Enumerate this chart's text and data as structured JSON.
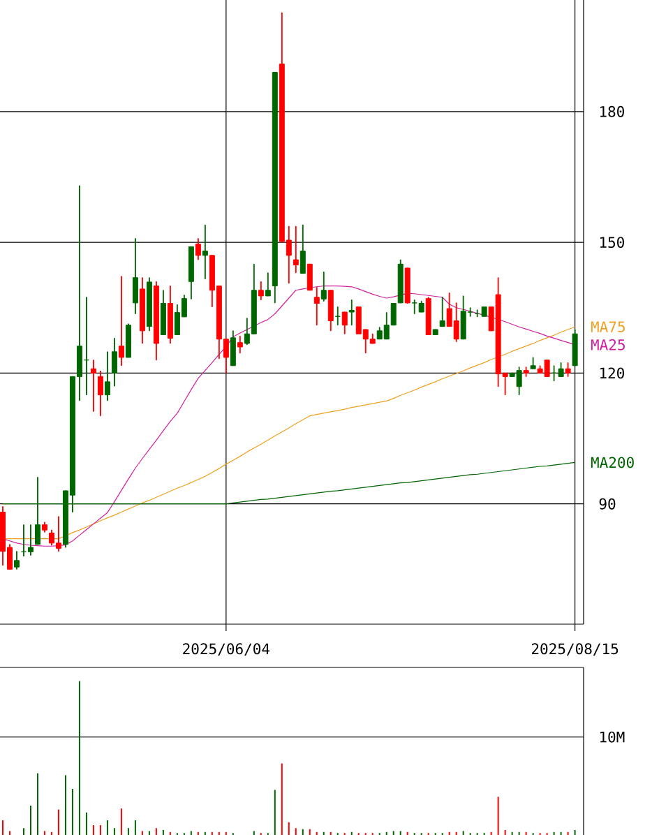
{
  "chart_data": [
    {
      "type": "candlestick",
      "categories": [
        null,
        null,
        null,
        null,
        null,
        null,
        null,
        null,
        null,
        null,
        null,
        null,
        null,
        null,
        null,
        null,
        null,
        null,
        null,
        null,
        null,
        null,
        null,
        null,
        null,
        null,
        null,
        null,
        null,
        null,
        null,
        null,
        "2025/06/04",
        null,
        null,
        null,
        null,
        null,
        null,
        null,
        null,
        null,
        null,
        null,
        null,
        null,
        null,
        null,
        null,
        null,
        null,
        null,
        null,
        null,
        null,
        null,
        null,
        null,
        null,
        null,
        null,
        null,
        null,
        null,
        null,
        null,
        null,
        null,
        null,
        null,
        null,
        null,
        null,
        null,
        null,
        null,
        null,
        null,
        null,
        null,
        null,
        null,
        "2025/08/15"
      ],
      "ohlc": [
        [
          88.1,
          89.4,
          75.9,
          79.1
        ],
        [
          80,
          80.7,
          75,
          75
        ],
        [
          75.5,
          79.1,
          75,
          77
        ],
        [
          79,
          85.2,
          78,
          79
        ],
        [
          79,
          85.2,
          78.2,
          80
        ],
        [
          80.7,
          96.1,
          80.7,
          85.2
        ],
        [
          85.2,
          85.8,
          83.5,
          84
        ],
        [
          83.3,
          84,
          80.5,
          81
        ],
        [
          81,
          87.1,
          79.1,
          79.8
        ],
        [
          80.7,
          93,
          80,
          93
        ],
        [
          92,
          119.2,
          88.1,
          119.2
        ],
        [
          119.2,
          163,
          113.7,
          126.2
        ],
        [
          123,
          137.4,
          115,
          123
        ],
        [
          121,
          123,
          111.2,
          120
        ],
        [
          119.2,
          120.5,
          110.2,
          115
        ],
        [
          115,
          124.9,
          113.7,
          118
        ],
        [
          120,
          128,
          117,
          124.9
        ],
        [
          126.2,
          142.2,
          121.7,
          123.6
        ],
        [
          123.6,
          131.3,
          123.6,
          131
        ],
        [
          136.1,
          150.9,
          133.6,
          141.9
        ],
        [
          139.3,
          141.9,
          126.8,
          129.7
        ],
        [
          130.7,
          141.9,
          129.7,
          140.9
        ],
        [
          140,
          141,
          123,
          126.8
        ],
        [
          128.8,
          139,
          128.8,
          136
        ],
        [
          136,
          140,
          126.8,
          128
        ],
        [
          128.8,
          135.7,
          128.8,
          133.9
        ],
        [
          132.9,
          137.9,
          132.9,
          137.1
        ],
        [
          141,
          149,
          137,
          149
        ],
        [
          149.6,
          150.9,
          146,
          147
        ],
        [
          147,
          154,
          141.6,
          148
        ],
        [
          147,
          147,
          135.2,
          139
        ],
        [
          140,
          140,
          123.3,
          127.8
        ],
        [
          127.8,
          127.8,
          120,
          123.6
        ],
        [
          121.7,
          129.7,
          121.7,
          128.1
        ],
        [
          127,
          128.5,
          124.6,
          126
        ],
        [
          126.8,
          132.6,
          126.5,
          129
        ],
        [
          129,
          145,
          129,
          139
        ],
        [
          139,
          141,
          136.8,
          137.7
        ],
        [
          137.7,
          143,
          137.7,
          139
        ],
        [
          140,
          189,
          136.1,
          189
        ],
        [
          190.9,
          202.7,
          150,
          150.2
        ],
        [
          150.5,
          153.7,
          140.6,
          147
        ],
        [
          146,
          153.7,
          143,
          144.8
        ],
        [
          142.9,
          154,
          142.9,
          148
        ],
        [
          145,
          145,
          139,
          139
        ],
        [
          137.4,
          139.7,
          131,
          136
        ],
        [
          137,
          143.2,
          136.5,
          139
        ],
        [
          139,
          139,
          129.7,
          132
        ],
        [
          133,
          135.2,
          131,
          133
        ],
        [
          134,
          134,
          129,
          131
        ],
        [
          134,
          136.8,
          131,
          134.4
        ],
        [
          135.2,
          135.2,
          129,
          129
        ],
        [
          130,
          130,
          124.6,
          127.8
        ],
        [
          127.8,
          129,
          126.8,
          126.8
        ],
        [
          127.8,
          130.5,
          127.8,
          129.7
        ],
        [
          127.8,
          133.9,
          127.8,
          131
        ],
        [
          131,
          136,
          131,
          136
        ],
        [
          136.1,
          146,
          136.1,
          145
        ],
        [
          144.1,
          144.1,
          136,
          136.1
        ],
        [
          136.1,
          136.8,
          133.6,
          136.1
        ],
        [
          134,
          136.5,
          134,
          136
        ],
        [
          137.1,
          137.4,
          128.8,
          128.8
        ],
        [
          128.8,
          130,
          128.8,
          130
        ],
        [
          130.7,
          137.4,
          130.7,
          132
        ],
        [
          134.8,
          138.4,
          130.7,
          130.7
        ],
        [
          132,
          136.1,
          127.2,
          127.8
        ],
        [
          127.8,
          137.7,
          127.8,
          134.2
        ],
        [
          134,
          135,
          133,
          134
        ],
        [
          133.6,
          134.5,
          132.9,
          133.6
        ],
        [
          133,
          135.2,
          133,
          135.2
        ],
        [
          135.2,
          135.2,
          129.7,
          129.7
        ],
        [
          138,
          141.9,
          116.9,
          119.8
        ],
        [
          120,
          120,
          115,
          119.2
        ],
        [
          119.2,
          120,
          119.2,
          120
        ],
        [
          116.9,
          121.4,
          115,
          120.6
        ],
        [
          120.6,
          121.4,
          119.2,
          120
        ],
        [
          121,
          123.6,
          121,
          121.7
        ],
        [
          121,
          121.7,
          120,
          120
        ],
        [
          123,
          123,
          119.2,
          119.2
        ],
        [
          120,
          121.7,
          118.2,
          120
        ],
        [
          119.2,
          122.4,
          119.2,
          121
        ],
        [
          121,
          122.4,
          119.2,
          120
        ],
        [
          121.7,
          130,
          121.7,
          129
        ]
      ],
      "colors": [
        "#ff0000",
        "#ff0000",
        "#006600",
        "#006600",
        "#006600",
        "#006600",
        "#ff0000",
        "#ff0000",
        "#ff0000",
        "#006600",
        "#006600",
        "#006600",
        "#006600",
        "#ff0000",
        "#ff0000",
        "#006600",
        "#006600",
        "#ff0000",
        "#006600",
        "#006600",
        "#ff0000",
        "#006600",
        "#ff0000",
        "#006600",
        "#ff0000",
        "#006600",
        "#006600",
        "#006600",
        "#ff0000",
        "#006600",
        "#ff0000",
        "#ff0000",
        "#ff0000",
        "#006600",
        "#ff0000",
        "#006600",
        "#006600",
        "#ff0000",
        "#006600",
        "#006600",
        "#ff0000",
        "#ff0000",
        "#ff0000",
        "#006600",
        "#ff0000",
        "#ff0000",
        "#006600",
        "#ff0000",
        "#006600",
        "#ff0000",
        "#006600",
        "#ff0000",
        "#ff0000",
        "#ff0000",
        "#006600",
        "#006600",
        "#006600",
        "#006600",
        "#ff0000",
        "#006600",
        "#006600",
        "#ff0000",
        "#006600",
        "#006600",
        "#ff0000",
        "#ff0000",
        "#006600",
        "#006600",
        "#006600",
        "#006600",
        "#ff0000",
        "#ff0000",
        "#ff0000",
        "#006600",
        "#006600",
        "#ff0000",
        "#006600",
        "#ff0000",
        "#ff0000",
        "#006600",
        "#006600",
        "#ff0000",
        "#006600"
      ],
      "ylim": [
        62.4,
        205.6
      ],
      "yticks": [
        90,
        120,
        150,
        180
      ],
      "grid": true,
      "series": [
        {
          "name": "MA75",
          "type": "line",
          "color": "#f0a020",
          "values": [
            82,
            82,
            82,
            82,
            82,
            82,
            82,
            82,
            82,
            82.7,
            83.4,
            84.0,
            84.7,
            85.4,
            86.1,
            86.8,
            87.4,
            88.1,
            88.8,
            89.5,
            90.2,
            90.8,
            91.5,
            92.2,
            92.9,
            93.6,
            94.2,
            94.9,
            95.6,
            96.3,
            97.2,
            98.1,
            99.1,
            100.0,
            100.9,
            101.9,
            102.8,
            103.7,
            104.6,
            105.6,
            106.5,
            107.4,
            108.4,
            109.3,
            110.2,
            110.5,
            110.8,
            111.1,
            111.4,
            111.7,
            112.1,
            112.4,
            112.7,
            113.0,
            113.3,
            113.6,
            114.2,
            114.9,
            115.5,
            116.1,
            116.8,
            117.4,
            118.0,
            118.7,
            119.3,
            119.9,
            120.5,
            121.2,
            121.8,
            122.4,
            123.1,
            123.7,
            124.3,
            125.0,
            125.6,
            126.2,
            126.8,
            127.5,
            128.1,
            128.7,
            129.4,
            130.0,
            130.6
          ]
        },
        {
          "name": "MA25",
          "type": "line",
          "color": "#d020a0",
          "values": [
            82,
            81.5,
            81,
            80.7,
            80.5,
            80.4,
            80.3,
            80.3,
            80.4,
            80.6,
            81.5,
            82.8,
            84.1,
            85.4,
            86.7,
            88.0,
            90.5,
            93.1,
            95.7,
            98.2,
            100.4,
            102.5,
            104.6,
            106.8,
            108.9,
            110.8,
            113.5,
            116.2,
            118.8,
            120.6,
            122.4,
            124.3,
            126.1,
            128.3,
            129.2,
            130.0,
            130.8,
            131.6,
            132.3,
            133.6,
            135.4,
            137.2,
            139.0,
            139.3,
            139.6,
            139.8,
            140.0,
            140.0,
            140.0,
            139.9,
            139.8,
            139.3,
            138.7,
            138.1,
            137.6,
            137.2,
            137.5,
            137.9,
            138.3,
            138.2,
            138.0,
            137.8,
            137.6,
            137.4,
            135.8,
            135.0,
            134.6,
            134.2,
            133.7,
            133.3,
            132.8,
            132.3,
            131.8,
            131.2,
            130.6,
            130.1,
            129.6,
            129.1,
            128.5,
            128.0,
            127.5,
            127.0,
            126.5
          ]
        },
        {
          "name": "MA200",
          "type": "line",
          "color": "#006400",
          "values": [
            90,
            90,
            90,
            90,
            90,
            90,
            90,
            90,
            90,
            90,
            90,
            90,
            90,
            90,
            90,
            90,
            90,
            90,
            90,
            90,
            90,
            90,
            90,
            90,
            90,
            90,
            90,
            90,
            90,
            90,
            90,
            90,
            90,
            90.2,
            90.4,
            90.6,
            90.8,
            91.0,
            91.1,
            91.3,
            91.5,
            91.7,
            91.9,
            92.1,
            92.3,
            92.5,
            92.7,
            92.9,
            93.0,
            93.2,
            93.4,
            93.6,
            93.8,
            94.0,
            94.2,
            94.4,
            94.6,
            94.8,
            94.9,
            95.1,
            95.3,
            95.5,
            95.7,
            95.9,
            96.1,
            96.3,
            96.5,
            96.7,
            96.8,
            97.0,
            97.2,
            97.4,
            97.6,
            97.8,
            98.0,
            98.2,
            98.4,
            98.6,
            98.7,
            98.9,
            99.1,
            99.3,
            99.5
          ]
        }
      ]
    },
    {
      "type": "bar",
      "categories": [
        null,
        null,
        null,
        null,
        null,
        null,
        null,
        null,
        null,
        null,
        null,
        null,
        null,
        null,
        null,
        null,
        null,
        null,
        null,
        null,
        null,
        null,
        null,
        null,
        null,
        null,
        null,
        null,
        null,
        null,
        null,
        null,
        null,
        null,
        null,
        null,
        null,
        null,
        null,
        null,
        null,
        null,
        null,
        null,
        null,
        null,
        null,
        null,
        null,
        null,
        null,
        null,
        null,
        null,
        null,
        null,
        null,
        null,
        null,
        null,
        null,
        null,
        null,
        null,
        null,
        null,
        null,
        null,
        null,
        null,
        null,
        null,
        null,
        null,
        null,
        null,
        null,
        null,
        null,
        null,
        null,
        null,
        null
      ],
      "values": [
        1.5,
        0.4,
        null,
        0.7,
        3.0,
        6.3,
        0.4,
        0.3,
        2.6,
        6.1,
        4.7,
        15.7,
        2.3,
        1.0,
        1.0,
        1.5,
        0.7,
        2.7,
        0.7,
        1.5,
        0.4,
        0.4,
        0.7,
        0.5,
        0.3,
        0.2,
        0.2,
        0.4,
        0.3,
        0.3,
        0.3,
        0.3,
        0.3,
        0.2,
        null,
        null,
        0.4,
        0.2,
        0.2,
        4.6,
        7.3,
        1.3,
        0.7,
        0.6,
        0.6,
        0.3,
        0.3,
        0.3,
        0.2,
        0.2,
        0.3,
        0.2,
        0.2,
        0.2,
        0.2,
        0.3,
        0.4,
        0.4,
        0.3,
        0.2,
        0.2,
        0.2,
        0.2,
        0.2,
        0.3,
        0.3,
        0.4,
        0.2,
        0.2,
        0.2,
        0.3,
        3.9,
        0.5,
        0.3,
        0.3,
        0.3,
        0.2,
        0.2,
        0.2,
        0.3,
        0.3,
        0.3,
        0.5
      ],
      "colors": [
        "#ff0000",
        "#ff0000",
        "#006600",
        "#006600",
        "#006600",
        "#006600",
        "#ff0000",
        "#ff0000",
        "#ff0000",
        "#006600",
        "#006600",
        "#006600",
        "#006600",
        "#ff0000",
        "#ff0000",
        "#006600",
        "#006600",
        "#ff0000",
        "#006600",
        "#006600",
        "#ff0000",
        "#006600",
        "#ff0000",
        "#006600",
        "#ff0000",
        "#006600",
        "#006600",
        "#006600",
        "#ff0000",
        "#006600",
        "#ff0000",
        "#ff0000",
        "#ff0000",
        "#006600",
        "#ff0000",
        "#006600",
        "#006600",
        "#ff0000",
        "#006600",
        "#006600",
        "#ff0000",
        "#ff0000",
        "#ff0000",
        "#006600",
        "#ff0000",
        "#ff0000",
        "#006600",
        "#ff0000",
        "#006600",
        "#ff0000",
        "#006600",
        "#ff0000",
        "#ff0000",
        "#ff0000",
        "#006600",
        "#006600",
        "#006600",
        "#006600",
        "#ff0000",
        "#006600",
        "#006600",
        "#ff0000",
        "#006600",
        "#006600",
        "#ff0000",
        "#ff0000",
        "#006600",
        "#006600",
        "#006600",
        "#006600",
        "#ff0000",
        "#ff0000",
        "#ff0000",
        "#006600",
        "#006600",
        "#ff0000",
        "#006600",
        "#ff0000",
        "#ff0000",
        "#006600",
        "#006600",
        "#ff0000",
        "#006600"
      ],
      "ylim": [
        0,
        17.1
      ],
      "yticks": [
        {
          "value": 10,
          "label": "10M"
        }
      ],
      "grid": "y",
      "tick_labels": "y"
    }
  ]
}
